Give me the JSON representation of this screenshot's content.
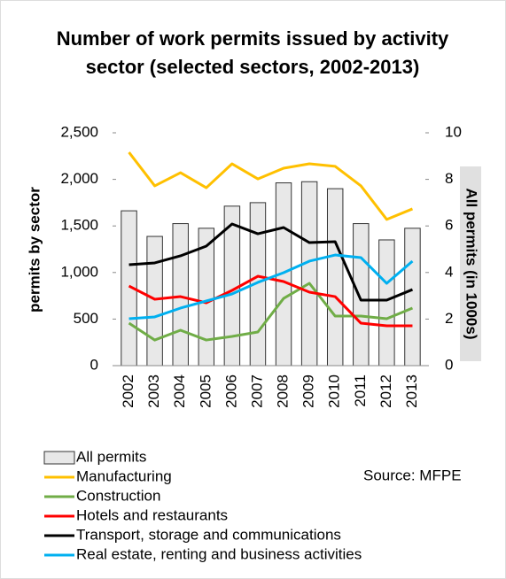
{
  "chart_data": {
    "type": "bar-line",
    "title": "Number of work permits issued by activity sector (selected sectors, 2002-2013)",
    "ylabel": "permits by sector",
    "y2label": "All permits (in 1000s)",
    "source": "Source: MFPE",
    "categories": [
      "2002",
      "2003",
      "2004",
      "2005",
      "2006",
      "2007",
      "2008",
      "2009",
      "2010",
      "2011",
      "2012",
      "2013"
    ],
    "ylim": [
      0,
      2500
    ],
    "yticks": [
      0,
      500,
      {
        "value": 1000,
        "label": "1,000"
      },
      {
        "value": 1500,
        "label": "1,500"
      },
      {
        "value": 2000,
        "label": "2,000"
      },
      {
        "value": 2500,
        "label": "2,500"
      }
    ],
    "y2lim": [
      0,
      10
    ],
    "y2ticks": [
      0,
      2,
      4,
      6,
      8,
      10
    ],
    "series": [
      {
        "name": "All permits",
        "type": "bar",
        "axis": "y2",
        "color": "#e8e8e8",
        "values": [
          6.65,
          5.55,
          6.1,
          5.9,
          6.85,
          7.0,
          7.85,
          7.9,
          7.6,
          6.1,
          5.4,
          5.9
        ]
      },
      {
        "name": "Manufacturing",
        "type": "line",
        "color": "#ffc000",
        "values": [
          2290,
          1930,
          2072,
          1910,
          2167,
          2005,
          2120,
          2167,
          2140,
          1930,
          1570,
          1683
        ]
      },
      {
        "name": "Construction",
        "type": "line",
        "color": "#70ad47",
        "values": [
          456,
          275,
          380,
          275,
          314,
          361,
          722,
          884,
          532,
          532,
          504,
          618
        ]
      },
      {
        "name": "Hotels and restaurants",
        "type": "line",
        "color": "#ff0000",
        "values": [
          855,
          713,
          741,
          675,
          808,
          960,
          903,
          789,
          741,
          456,
          428,
          428
        ]
      },
      {
        "name": "Transport, storage and communications",
        "type": "line",
        "color": "#000000",
        "values": [
          1084,
          1103,
          1179,
          1283,
          1521,
          1416,
          1483,
          1321,
          1331,
          703,
          703,
          817
        ]
      },
      {
        "name": "Real estate, renting and business activities",
        "type": "line",
        "color": "#00b0f0",
        "values": [
          504,
          523,
          618,
          694,
          770,
          894,
          998,
          1122,
          1188,
          1160,
          884,
          1122
        ]
      }
    ]
  }
}
